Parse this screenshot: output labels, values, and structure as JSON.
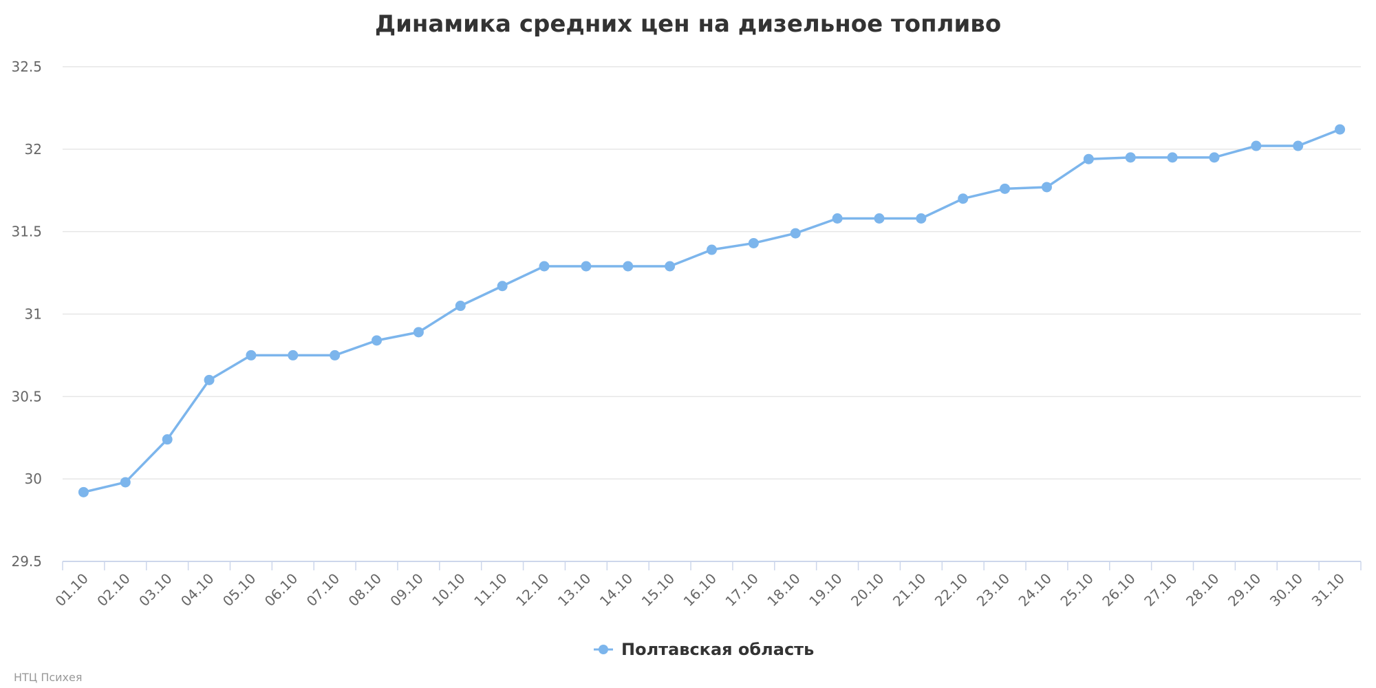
{
  "chart_data": {
    "type": "line",
    "title": "Динамика средних цен на дизельное топливо",
    "xlabel": "",
    "ylabel": "",
    "ylim": [
      29.5,
      32.5
    ],
    "yticks": [
      "29.5",
      "30",
      "30.5",
      "31",
      "31.5",
      "32",
      "32.5"
    ],
    "grid": true,
    "legend_position": "bottom-center",
    "categories": [
      "01.10",
      "02.10",
      "03.10",
      "04.10",
      "05.10",
      "06.10",
      "07.10",
      "08.10",
      "09.10",
      "10.10",
      "11.10",
      "12.10",
      "13.10",
      "14.10",
      "15.10",
      "16.10",
      "17.10",
      "18.10",
      "19.10",
      "20.10",
      "21.10",
      "22.10",
      "23.10",
      "24.10",
      "25.10",
      "26.10",
      "27.10",
      "28.10",
      "29.10",
      "30.10",
      "31.10"
    ],
    "series": [
      {
        "name": "Полтавская область",
        "color": "#7cb5ec",
        "values": [
          29.92,
          29.98,
          30.24,
          30.6,
          30.75,
          30.75,
          30.75,
          30.84,
          30.89,
          31.05,
          31.17,
          31.29,
          31.29,
          31.29,
          31.29,
          31.39,
          31.43,
          31.49,
          31.58,
          31.58,
          31.58,
          31.7,
          31.76,
          31.77,
          31.94,
          31.95,
          31.95,
          31.95,
          32.02,
          32.02,
          32.12
        ]
      }
    ]
  },
  "credits": "НТЦ Психея"
}
